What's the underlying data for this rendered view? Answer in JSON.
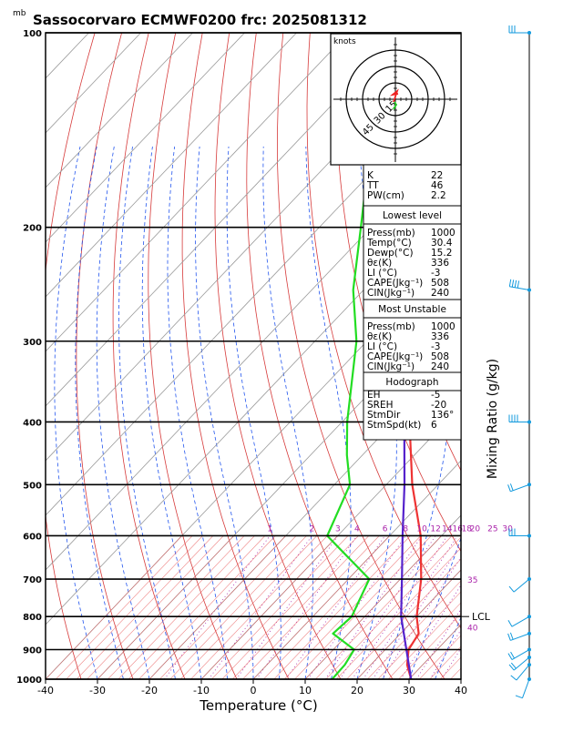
{
  "title": "Sassocorvaro ECMWF0200 frc: 2025081312",
  "chart_data": {
    "type": "skew-t",
    "title": "Sassocorvaro ECMWF0200 frc: 2025081312",
    "y_unit": "mb",
    "xlabel": "Temperature (°C)",
    "right_label": "Mixing Ratio (g/kg)",
    "xlim": [
      -40,
      40
    ],
    "x_ticks": [
      -40,
      -30,
      -20,
      -10,
      0,
      10,
      20,
      30,
      40
    ],
    "p_ticks": [
      100,
      200,
      300,
      400,
      500,
      600,
      700,
      800,
      900,
      1000
    ],
    "mixing_ratio_labels": [
      "1",
      "2",
      "3",
      "4",
      "6",
      "8",
      "10",
      "12",
      "14",
      "16",
      "18",
      "20",
      "25",
      "30"
    ],
    "mixing_ratio_extra": [
      {
        "label": "35",
        "p": 700
      },
      {
        "label": "40",
        "p": 830
      }
    ],
    "lcl_label": "LCL",
    "lcl_p": 800,
    "series": [
      {
        "name": "Temperature",
        "color": "#ee3333",
        "points": [
          [
            1000,
            30.4
          ],
          [
            950,
            27
          ],
          [
            900,
            24.5
          ],
          [
            850,
            23.5
          ],
          [
            800,
            20
          ],
          [
            700,
            14
          ],
          [
            600,
            6
          ],
          [
            500,
            -5
          ],
          [
            400,
            -17
          ],
          [
            350,
            -23
          ],
          [
            300,
            -30
          ],
          [
            250,
            -40
          ],
          [
            200,
            -52
          ],
          [
            150,
            -62
          ],
          [
            100,
            -75
          ]
        ]
      },
      {
        "name": "Dewpoint",
        "color": "#22dd22",
        "points": [
          [
            1000,
            15.2
          ],
          [
            950,
            15
          ],
          [
            900,
            14
          ],
          [
            850,
            7
          ],
          [
            800,
            7.5
          ],
          [
            700,
            4
          ],
          [
            600,
            -12
          ],
          [
            500,
            -17
          ],
          [
            450,
            -23
          ],
          [
            400,
            -29
          ],
          [
            300,
            -42
          ],
          [
            250,
            -52
          ],
          [
            200,
            -62
          ],
          [
            150,
            -75
          ],
          [
            100,
            -84
          ]
        ]
      },
      {
        "name": "Parcel",
        "color": "#5522cc",
        "points": [
          [
            1000,
            30.4
          ],
          [
            800,
            17
          ],
          [
            700,
            10.3
          ],
          [
            600,
            2.5
          ],
          [
            500,
            -6.5
          ],
          [
            400,
            -18
          ],
          [
            350,
            -25
          ],
          [
            300,
            -33
          ],
          [
            200,
            -55
          ],
          [
            100,
            -88
          ]
        ]
      }
    ],
    "indices": {
      "K": "22",
      "TT": "46",
      "PW(cm)": "2.2"
    },
    "lowest_level": {
      "header": "Lowest level",
      "rows": [
        [
          "Press(mb)",
          "1000"
        ],
        [
          "Temp(°C)",
          "30.4"
        ],
        [
          "Dewp(°C)",
          "15.2"
        ],
        [
          "θε(K)",
          "336"
        ],
        [
          "LI (°C)",
          "-3"
        ],
        [
          "CAPE(Jkg⁻¹)",
          "508"
        ],
        [
          "CIN(Jkg⁻¹)",
          "240"
        ]
      ]
    },
    "most_unstable": {
      "header": "Most Unstable",
      "rows": [
        [
          "Press(mb)",
          "1000"
        ],
        [
          "θε(K)",
          "336"
        ],
        [
          "LI (°C)",
          "-3"
        ],
        [
          "CAPE(Jkg⁻¹)",
          "508"
        ],
        [
          "CIN(Jkg⁻¹)",
          "240"
        ]
      ]
    },
    "hodograph_table": {
      "header": "Hodograph",
      "rows": [
        [
          "EH",
          "-5"
        ],
        [
          "SREH",
          "-20"
        ],
        [
          "StmDir",
          "136°"
        ],
        [
          "StmSpd(kt)",
          "6"
        ]
      ]
    },
    "hodograph": {
      "unit": "knots",
      "ring_labels": [
        "15",
        "30",
        "45"
      ]
    },
    "wind_barbs": [
      {
        "p": 1000,
        "dir": 200,
        "kt": 8
      },
      {
        "p": 950,
        "dir": 220,
        "kt": 12
      },
      {
        "p": 925,
        "dir": 230,
        "kt": 15
      },
      {
        "p": 900,
        "dir": 240,
        "kt": 18
      },
      {
        "p": 850,
        "dir": 250,
        "kt": 15
      },
      {
        "p": 800,
        "dir": 240,
        "kt": 10
      },
      {
        "p": 700,
        "dir": 230,
        "kt": 8
      },
      {
        "p": 600,
        "dir": 270,
        "kt": 25
      },
      {
        "p": 500,
        "dir": 250,
        "kt": 20
      },
      {
        "p": 400,
        "dir": 270,
        "kt": 35
      },
      {
        "p": 250,
        "dir": 280,
        "kt": 40
      },
      {
        "p": 100,
        "dir": 270,
        "kt": 30
      }
    ]
  }
}
